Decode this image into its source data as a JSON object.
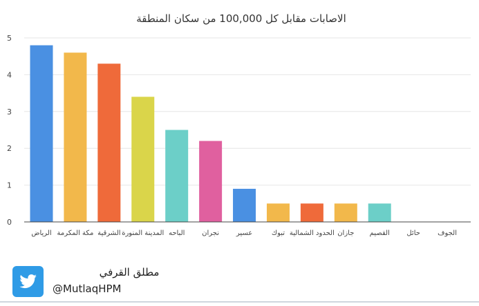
{
  "chart_data": {
    "type": "bar",
    "title": "الاصابات مقابل كل 100,000 من سكان المنطقة",
    "categories": [
      "الرياض",
      "مكة المكرمة",
      "الشرقية",
      "المدينة المنورة",
      "الباحه",
      "نجران",
      "عسير",
      "تبوك",
      "الحدود الشمالية",
      "جازان",
      "القصيم",
      "حائل",
      "الجوف"
    ],
    "values": [
      4.8,
      4.6,
      4.3,
      3.4,
      2.5,
      2.2,
      0.9,
      0.5,
      0.5,
      0.5,
      0.5,
      0,
      0
    ],
    "colors": [
      "#4a90e2",
      "#f2b84b",
      "#ef6a3a",
      "#dad54a",
      "#6ccfc8",
      "#e0609f",
      "#4a90e2",
      "#f2b84b",
      "#ef6a3a",
      "#f2b84b",
      "#6ccfc8",
      "#4a90e2",
      "#4a90e2"
    ],
    "yticks": [
      "0",
      "1",
      "2",
      "3",
      "4",
      "5"
    ],
    "ylim": [
      0,
      5
    ],
    "grid": true,
    "legend": "none"
  },
  "footer": {
    "author_name": "مطلق القرفي",
    "author_handle": "@MutlaqHPM",
    "icon": "twitter-bird-icon",
    "brand_color": "#2f9be6"
  }
}
